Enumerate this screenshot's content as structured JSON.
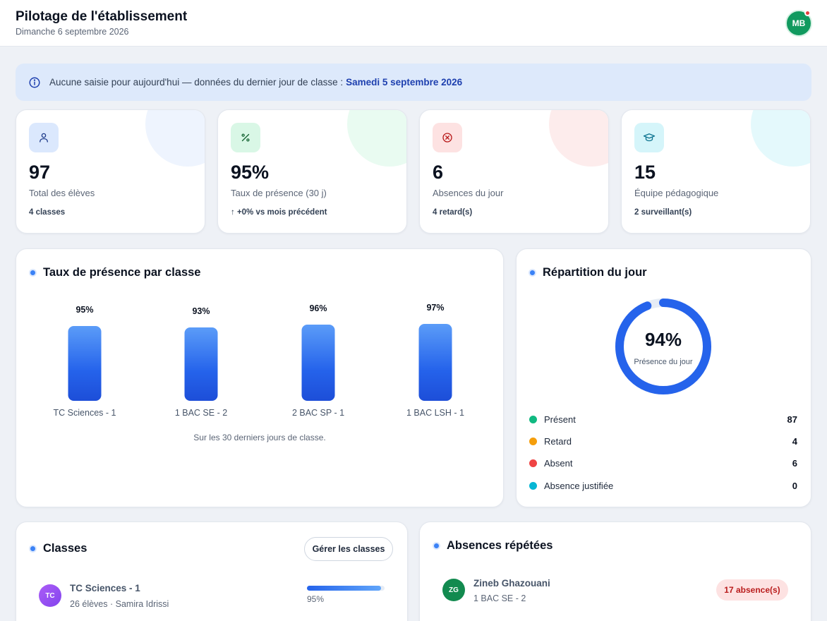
{
  "header": {
    "title": "Pilotage de l'établissement",
    "date": "Dimanche 6 septembre 2026",
    "avatar_initials": "MB"
  },
  "banner": {
    "text": "Aucune saisie pour aujourd'hui — données du dernier jour de classe :",
    "date": "Samedi 5 septembre 2026"
  },
  "stats": [
    {
      "icon": "users-icon",
      "value": "97",
      "label": "Total des élèves",
      "sub": "4 classes",
      "color": "#dbe8fd",
      "accent": "#1e3a8a"
    },
    {
      "icon": "percent-icon",
      "value": "95%",
      "label": "Taux de présence (30 j)",
      "sub": "↑  +0% vs mois précédent",
      "color": "#d9f7e6",
      "accent": "#166534"
    },
    {
      "icon": "x-circle-icon",
      "value": "6",
      "label": "Absences du jour",
      "sub": "4 retard(s)",
      "color": "#fde2e2",
      "accent": "#b91c1c"
    },
    {
      "icon": "graduation-cap-icon",
      "value": "15",
      "label": "Équipe pédagogique",
      "sub": "2 surveillant(s)",
      "color": "#d5f5fa",
      "accent": "#0e7490"
    }
  ],
  "attendance_panel": {
    "title": "Taux de présence par classe",
    "note": "Sur les 30 derniers jours de classe."
  },
  "chart_data": {
    "type": "bar",
    "categories": [
      "TC Sciences - 1",
      "1 BAC SE - 2",
      "2 BAC SP - 1",
      "1 BAC LSH - 1"
    ],
    "values": [
      95,
      93,
      96,
      97
    ],
    "value_labels": [
      "95%",
      "93%",
      "96%",
      "97%"
    ],
    "title": "Taux de présence par classe",
    "ylim": [
      0,
      100
    ]
  },
  "distribution_panel": {
    "title": "Répartition du jour",
    "donut_value": "94%",
    "donut_fraction": 0.94,
    "donut_label": "Présence du jour",
    "legend": [
      {
        "label": "Présent",
        "count": "87",
        "color": "#10b981"
      },
      {
        "label": "Retard",
        "count": "4",
        "color": "#f59e0b"
      },
      {
        "label": "Absent",
        "count": "6",
        "color": "#ef4444"
      },
      {
        "label": "Absence justifiée",
        "count": "0",
        "color": "#06b6d4"
      }
    ]
  },
  "classes_panel": {
    "title": "Classes",
    "manage_label": "Gérer les classes",
    "items": [
      {
        "initials": "TC",
        "name": "TC Sciences - 1",
        "meta": "26 élèves · Samira Idrissi",
        "rate": "95%",
        "rate_value": 0.95
      }
    ]
  },
  "absences_panel": {
    "title": "Absences répétées",
    "items": [
      {
        "initials": "ZG",
        "name": "Zineb Ghazouani",
        "class": "1 BAC SE - 2",
        "badge": "17 absence(s)"
      }
    ]
  }
}
